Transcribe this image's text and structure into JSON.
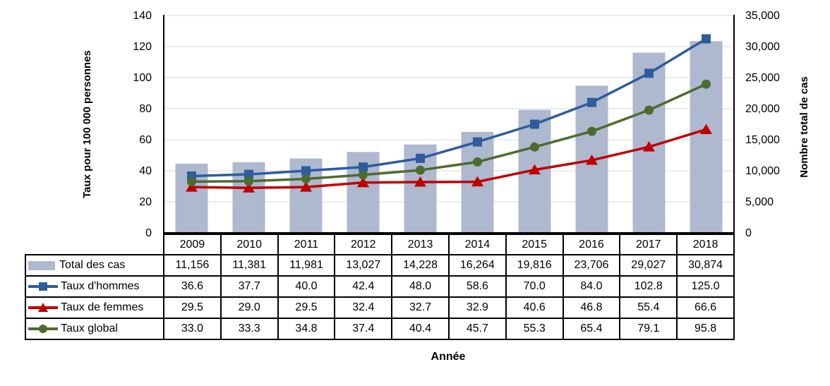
{
  "chart_data": {
    "type": "combo-bar-line",
    "categories": [
      "2009",
      "2010",
      "2011",
      "2012",
      "2013",
      "2014",
      "2015",
      "2016",
      "2017",
      "2018"
    ],
    "bar_series": {
      "name": "Total des cas",
      "axis": "right",
      "color": "#AEB8CE",
      "values": [
        11156,
        11381,
        11981,
        13027,
        14228,
        16264,
        19816,
        23706,
        29027,
        30874
      ]
    },
    "line_series": [
      {
        "name": "Taux d'hommes",
        "marker": "square",
        "color": "#2E5C9E",
        "values": [
          36.6,
          37.7,
          40.0,
          42.4,
          48.0,
          58.6,
          70.0,
          84.0,
          102.8,
          125.0
        ]
      },
      {
        "name": "Taux de femmes",
        "marker": "triangle",
        "color": "#C00000",
        "values": [
          29.5,
          29.0,
          29.5,
          32.4,
          32.7,
          32.9,
          40.6,
          46.8,
          55.4,
          66.6
        ]
      },
      {
        "name": "Taux global",
        "marker": "circle",
        "color": "#4D6B2F",
        "values": [
          33.0,
          33.3,
          34.8,
          37.4,
          40.4,
          45.7,
          55.3,
          65.4,
          79.1,
          95.8
        ]
      }
    ],
    "left_axis": {
      "title": "Taux pour 100 000 personnes",
      "min": 0,
      "max": 140,
      "step": 20,
      "tick_labels": [
        "0",
        "20",
        "40",
        "60",
        "80",
        "100",
        "120",
        "140"
      ]
    },
    "right_axis": {
      "title": "Nombre total de cas",
      "min": 0,
      "max": 35000,
      "step": 5000,
      "tick_labels": [
        "0",
        "5,000",
        "10,000",
        "15,000",
        "20,000",
        "25,000",
        "30,000",
        "35,000"
      ]
    },
    "x_axis": {
      "title": "Année"
    },
    "gridlines": {
      "show": true,
      "color": "#D9D9D9"
    },
    "axis_line_color": "#000000"
  },
  "table": {
    "rows": [
      {
        "label": "Total des cas",
        "swatch": "bar",
        "color": "#AEB8CE",
        "values": [
          "11,156",
          "11,381",
          "11,981",
          "13,027",
          "14,228",
          "16,264",
          "19,816",
          "23,706",
          "29,027",
          "30,874"
        ]
      },
      {
        "label": "Taux d'hommes",
        "swatch": "line-square",
        "color": "#2E5C9E",
        "values": [
          "36.6",
          "37.7",
          "40.0",
          "42.4",
          "48.0",
          "58.6",
          "70.0",
          "84.0",
          "102.8",
          "125.0"
        ]
      },
      {
        "label": "Taux de femmes",
        "swatch": "line-triangle",
        "color": "#C00000",
        "values": [
          "29.5",
          "29.0",
          "29.5",
          "32.4",
          "32.7",
          "32.9",
          "40.6",
          "46.8",
          "55.4",
          "66.6"
        ]
      },
      {
        "label": "Taux global",
        "swatch": "line-circle",
        "color": "#4D6B2F",
        "values": [
          "33.0",
          "33.3",
          "34.8",
          "37.4",
          "40.4",
          "45.7",
          "55.3",
          "65.4",
          "79.1",
          "95.8"
        ]
      }
    ]
  }
}
